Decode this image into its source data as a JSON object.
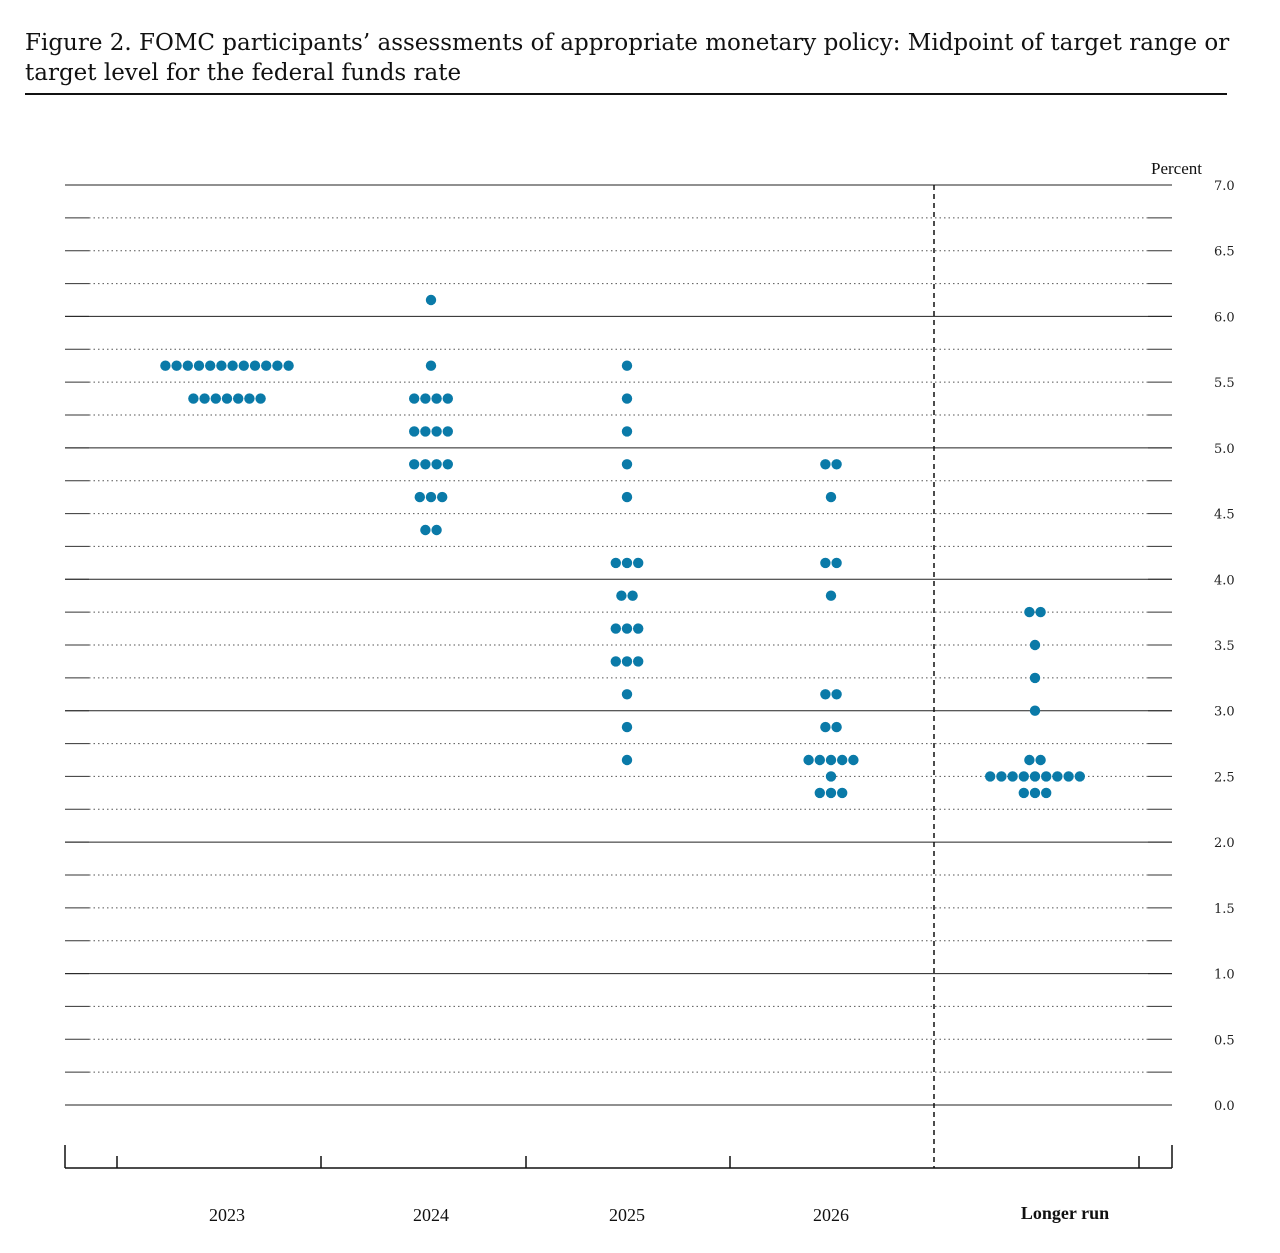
{
  "figure": {
    "title": "Figure 2.  FOMC participants’ assessments of appropriate monetary policy:  Midpoint of target range or target level for the federal funds rate"
  },
  "chart_data": {
    "type": "scatter",
    "title": "Figure 2.  FOMC participants’ assessments of appropriate monetary policy:  Midpoint of target range or target level for the federal funds rate",
    "ylabel": "Percent",
    "ylim": [
      0,
      7
    ],
    "yticks": [
      "0.0",
      "0.5",
      "1.0",
      "1.5",
      "2.0",
      "2.5",
      "3.0",
      "3.5",
      "4.0",
      "4.5",
      "5.0",
      "5.5",
      "6.0",
      "6.5",
      "7.0"
    ],
    "gridlines": "dotted every 0.25, solid every 1.0",
    "categories": [
      "2023",
      "2024",
      "2025",
      "2026",
      "Longer run"
    ],
    "separator_before": "Longer run",
    "dot_color": "#0a7aa8",
    "dots": [
      {
        "category": "2023",
        "values": [
          {
            "rate": 5.625,
            "count": 12
          },
          {
            "rate": 5.375,
            "count": 7
          }
        ]
      },
      {
        "category": "2024",
        "values": [
          {
            "rate": 6.125,
            "count": 1
          },
          {
            "rate": 5.625,
            "count": 1
          },
          {
            "rate": 5.375,
            "count": 4
          },
          {
            "rate": 5.125,
            "count": 4
          },
          {
            "rate": 4.875,
            "count": 4
          },
          {
            "rate": 4.625,
            "count": 3
          },
          {
            "rate": 4.375,
            "count": 2
          }
        ]
      },
      {
        "category": "2025",
        "values": [
          {
            "rate": 5.625,
            "count": 1
          },
          {
            "rate": 5.375,
            "count": 1
          },
          {
            "rate": 5.125,
            "count": 1
          },
          {
            "rate": 4.875,
            "count": 1
          },
          {
            "rate": 4.625,
            "count": 1
          },
          {
            "rate": 4.125,
            "count": 3
          },
          {
            "rate": 3.875,
            "count": 2
          },
          {
            "rate": 3.625,
            "count": 3
          },
          {
            "rate": 3.375,
            "count": 3
          },
          {
            "rate": 3.125,
            "count": 1
          },
          {
            "rate": 2.875,
            "count": 1
          },
          {
            "rate": 2.625,
            "count": 1
          }
        ]
      },
      {
        "category": "2026",
        "values": [
          {
            "rate": 4.875,
            "count": 2
          },
          {
            "rate": 4.625,
            "count": 1
          },
          {
            "rate": 4.125,
            "count": 2
          },
          {
            "rate": 3.875,
            "count": 1
          },
          {
            "rate": 3.125,
            "count": 2
          },
          {
            "rate": 2.875,
            "count": 2
          },
          {
            "rate": 2.625,
            "count": 5
          },
          {
            "rate": 2.5,
            "count": 1
          },
          {
            "rate": 2.375,
            "count": 3
          }
        ]
      },
      {
        "category": "Longer run",
        "values": [
          {
            "rate": 3.75,
            "count": 2
          },
          {
            "rate": 3.5,
            "count": 1
          },
          {
            "rate": 3.25,
            "count": 1
          },
          {
            "rate": 3.0,
            "count": 1
          },
          {
            "rate": 2.625,
            "count": 2
          },
          {
            "rate": 2.5,
            "count": 9
          },
          {
            "rate": 2.375,
            "count": 3
          }
        ]
      }
    ]
  }
}
